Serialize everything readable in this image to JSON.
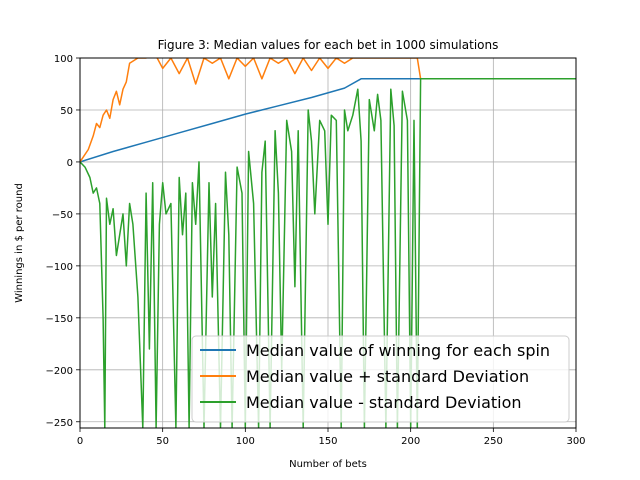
{
  "chart_data": {
    "type": "line",
    "title": "Figure 3: Median values for each bet in 1000 simulations",
    "xlabel": "Number of bets",
    "ylabel": "Winnings in $ per round",
    "xlim": [
      0,
      300
    ],
    "ylim": [
      -256,
      100
    ],
    "xticks": [
      0,
      50,
      100,
      150,
      200,
      250,
      300
    ],
    "yticks": [
      100,
      50,
      0,
      -50,
      -100,
      -150,
      -200,
      -250
    ],
    "grid": true,
    "legend_position": "lower-right",
    "series": [
      {
        "name": "Median value of winning for each spin",
        "color": "#1f77b4",
        "x": [
          0,
          20,
          40,
          60,
          80,
          100,
          120,
          140,
          160,
          170,
          180,
          200,
          220,
          240,
          260,
          280,
          300
        ],
        "y": [
          0,
          10,
          19,
          28,
          37,
          46,
          54,
          62,
          71,
          80,
          80,
          80,
          80,
          80,
          80,
          80,
          80
        ]
      },
      {
        "name": "Median value + standard Deviation",
        "color": "#ff7f0e",
        "x": [
          0,
          5,
          8,
          10,
          12,
          14,
          16,
          18,
          20,
          22,
          24,
          26,
          28,
          30,
          35,
          40,
          45,
          50,
          55,
          60,
          65,
          70,
          75,
          80,
          85,
          90,
          95,
          100,
          105,
          110,
          115,
          120,
          125,
          130,
          135,
          140,
          145,
          150,
          155,
          160,
          165,
          170,
          180,
          190,
          200,
          204,
          206,
          210,
          220,
          240,
          260,
          280,
          300
        ],
        "y": [
          0,
          12,
          25,
          37,
          33,
          45,
          50,
          42,
          60,
          68,
          55,
          70,
          77,
          95,
          100,
          100,
          105,
          90,
          100,
          85,
          100,
          75,
          100,
          95,
          100,
          80,
          100,
          92,
          100,
          80,
          100,
          95,
          100,
          85,
          100,
          88,
          100,
          90,
          100,
          95,
          100,
          100,
          100,
          100,
          100,
          100,
          80,
          80,
          80,
          80,
          80,
          80,
          80
        ]
      },
      {
        "name": "Median value - standard Deviation",
        "color": "#2ca02c",
        "x": [
          0,
          3,
          6,
          8,
          10,
          12,
          14,
          15,
          16,
          18,
          20,
          22,
          24,
          26,
          28,
          30,
          32,
          35,
          38,
          40,
          42,
          44,
          46,
          48,
          50,
          52,
          55,
          58,
          60,
          62,
          64,
          66,
          68,
          70,
          72,
          75,
          78,
          80,
          82,
          85,
          88,
          90,
          92,
          95,
          98,
          100,
          102,
          105,
          108,
          110,
          112,
          115,
          118,
          120,
          122,
          125,
          128,
          130,
          132,
          135,
          138,
          140,
          142,
          145,
          148,
          150,
          152,
          155,
          158,
          160,
          162,
          165,
          168,
          170,
          172,
          175,
          178,
          180,
          182,
          185,
          188,
          190,
          192,
          195,
          198,
          200,
          202,
          204,
          206,
          210,
          220,
          240,
          260,
          280,
          300
        ],
        "y": [
          0,
          -5,
          -15,
          -30,
          -25,
          -40,
          -150,
          -256,
          -35,
          -60,
          -45,
          -90,
          -70,
          -50,
          -100,
          -40,
          -60,
          -130,
          -256,
          -30,
          -180,
          -20,
          -256,
          -60,
          -20,
          -50,
          -40,
          -256,
          -15,
          -70,
          -30,
          -256,
          -20,
          -60,
          0,
          -256,
          -20,
          -130,
          -40,
          -256,
          -10,
          -70,
          -256,
          -5,
          -30,
          -256,
          10,
          -40,
          -256,
          -10,
          20,
          -256,
          30,
          -30,
          -200,
          40,
          10,
          -120,
          30,
          -256,
          50,
          20,
          -50,
          40,
          30,
          -60,
          45,
          40,
          -256,
          50,
          30,
          45,
          70,
          20,
          -256,
          60,
          30,
          65,
          40,
          -256,
          70,
          35,
          -256,
          68,
          40,
          -256,
          40,
          -256,
          80,
          80,
          80,
          80,
          80,
          80,
          80
        ]
      }
    ]
  }
}
